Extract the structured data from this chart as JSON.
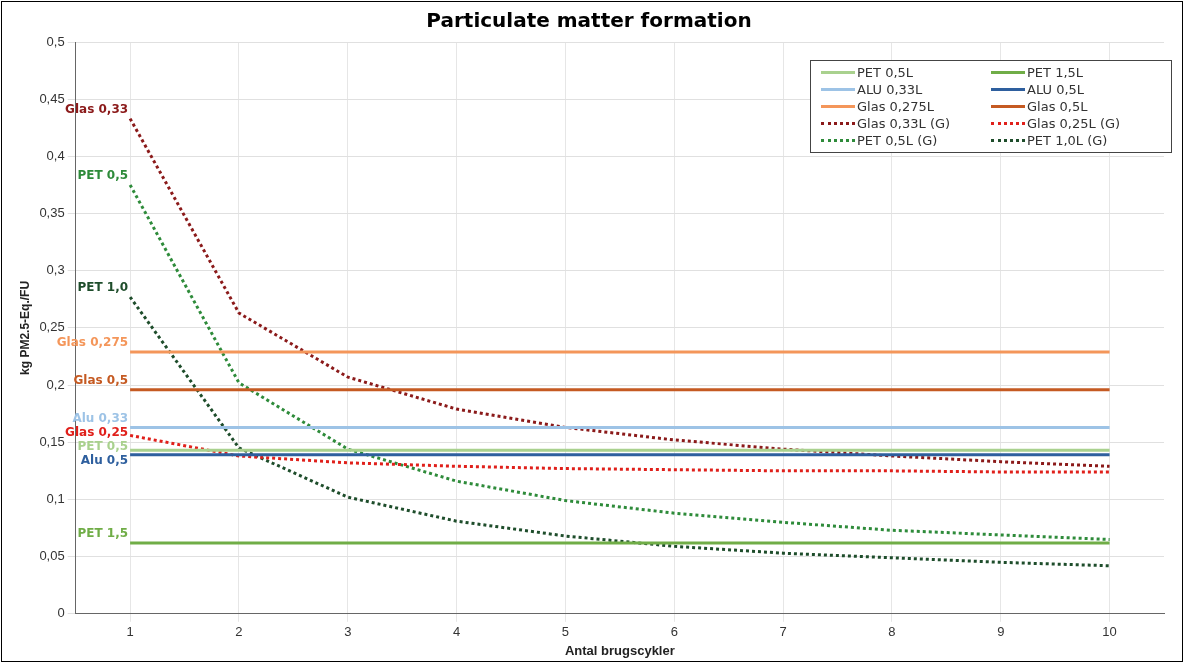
{
  "chart_data": {
    "type": "line",
    "title": "Particulate matter formation",
    "xlabel": "Antal brugscykler",
    "ylabel": "kg PM2.5-Eq./FU",
    "categories": [
      "1",
      "2",
      "3",
      "4",
      "5",
      "6",
      "7",
      "8",
      "9",
      "10"
    ],
    "ylim": [
      0,
      0.5
    ],
    "yticks": [
      0,
      {
        "value": 0.05,
        "label": "0,05"
      },
      {
        "value": 0.1,
        "label": "0,1"
      },
      {
        "value": 0.15,
        "label": "0,15"
      },
      {
        "value": 0.2,
        "label": "0,2"
      },
      {
        "value": 0.25,
        "label": "0,25"
      },
      {
        "value": 0.3,
        "label": "0,3"
      },
      {
        "value": 0.35,
        "label": "0,35"
      },
      {
        "value": 0.4,
        "label": "0,4"
      },
      {
        "value": 0.45,
        "label": "0,45"
      },
      {
        "value": 0.5,
        "label": "0,5"
      }
    ],
    "grid": true,
    "legend": "top right",
    "marker": "none",
    "series": [
      {
        "name": "PET 0,5L",
        "color": "#a9d18e",
        "line_style": "solid",
        "values": [
          0.143,
          0.143,
          0.143,
          0.143,
          0.143,
          0.143,
          0.143,
          0.143,
          0.143,
          0.143
        ]
      },
      {
        "name": "PET 1,5L",
        "color": "#70ad47",
        "line_style": "solid",
        "values": [
          0.062,
          0.062,
          0.062,
          0.062,
          0.062,
          0.062,
          0.062,
          0.062,
          0.062,
          0.062
        ]
      },
      {
        "name": "ALU 0,33L",
        "color": "#9dc3e6",
        "line_style": "solid",
        "values": [
          0.163,
          0.163,
          0.163,
          0.163,
          0.163,
          0.163,
          0.163,
          0.163,
          0.163,
          0.163
        ]
      },
      {
        "name": "ALU 0,5L",
        "color": "#2e5f9e",
        "line_style": "solid",
        "values": [
          0.139,
          0.139,
          0.139,
          0.139,
          0.139,
          0.139,
          0.139,
          0.139,
          0.139,
          0.139
        ]
      },
      {
        "name": "Glas 0,275L",
        "color": "#f4965a",
        "line_style": "solid",
        "values": [
          0.229,
          0.229,
          0.229,
          0.229,
          0.229,
          0.229,
          0.229,
          0.229,
          0.229,
          0.229
        ]
      },
      {
        "name": "Glas 0,5L",
        "color": "#c55a22",
        "line_style": "solid",
        "values": [
          0.196,
          0.196,
          0.196,
          0.196,
          0.196,
          0.196,
          0.196,
          0.196,
          0.196,
          0.196
        ]
      },
      {
        "name": "Glas 0,33L (G)",
        "color": "#8b1a1a",
        "line_style": "dotted",
        "values": [
          0.433,
          0.263,
          0.207,
          0.179,
          0.163,
          0.152,
          0.144,
          0.138,
          0.133,
          0.129
        ]
      },
      {
        "name": "Glas 0,25L (G)",
        "color": "#e0201b",
        "line_style": "dotted",
        "values": [
          0.156,
          0.138,
          0.132,
          0.129,
          0.127,
          0.126,
          0.125,
          0.125,
          0.124,
          0.124
        ]
      },
      {
        "name": "PET 0,5L (G)",
        "color": "#2e8b3a",
        "line_style": "dotted",
        "values": [
          0.375,
          0.202,
          0.144,
          0.116,
          0.099,
          0.088,
          0.08,
          0.073,
          0.069,
          0.065
        ]
      },
      {
        "name": "PET 1,0L (G)",
        "color": "#1e4d2b",
        "line_style": "dotted",
        "values": [
          0.277,
          0.145,
          0.102,
          0.081,
          0.068,
          0.059,
          0.053,
          0.049,
          0.045,
          0.042
        ]
      }
    ],
    "annotations": [
      {
        "text": "Glas 0,33",
        "x": "1",
        "y": 0.433
      },
      {
        "text": "PET 0,5",
        "x": "1",
        "y": 0.375
      },
      {
        "text": "PET 1,0",
        "x": "1",
        "y": 0.277
      },
      {
        "text": "Glas 0,275",
        "x": "1",
        "y": 0.229
      },
      {
        "text": "Glas 0,5",
        "x": "1",
        "y": 0.196
      },
      {
        "text": "Alu 0,33",
        "x": "1",
        "y": 0.163
      },
      {
        "text": "Glas 0,25",
        "x": "1",
        "y": 0.156
      },
      {
        "text": "PET 0,5",
        "x": "1",
        "y": 0.143
      },
      {
        "text": "Alu 0,5",
        "x": "1",
        "y": 0.139
      },
      {
        "text": "PET 1,5",
        "x": "1",
        "y": 0.062
      }
    ]
  }
}
